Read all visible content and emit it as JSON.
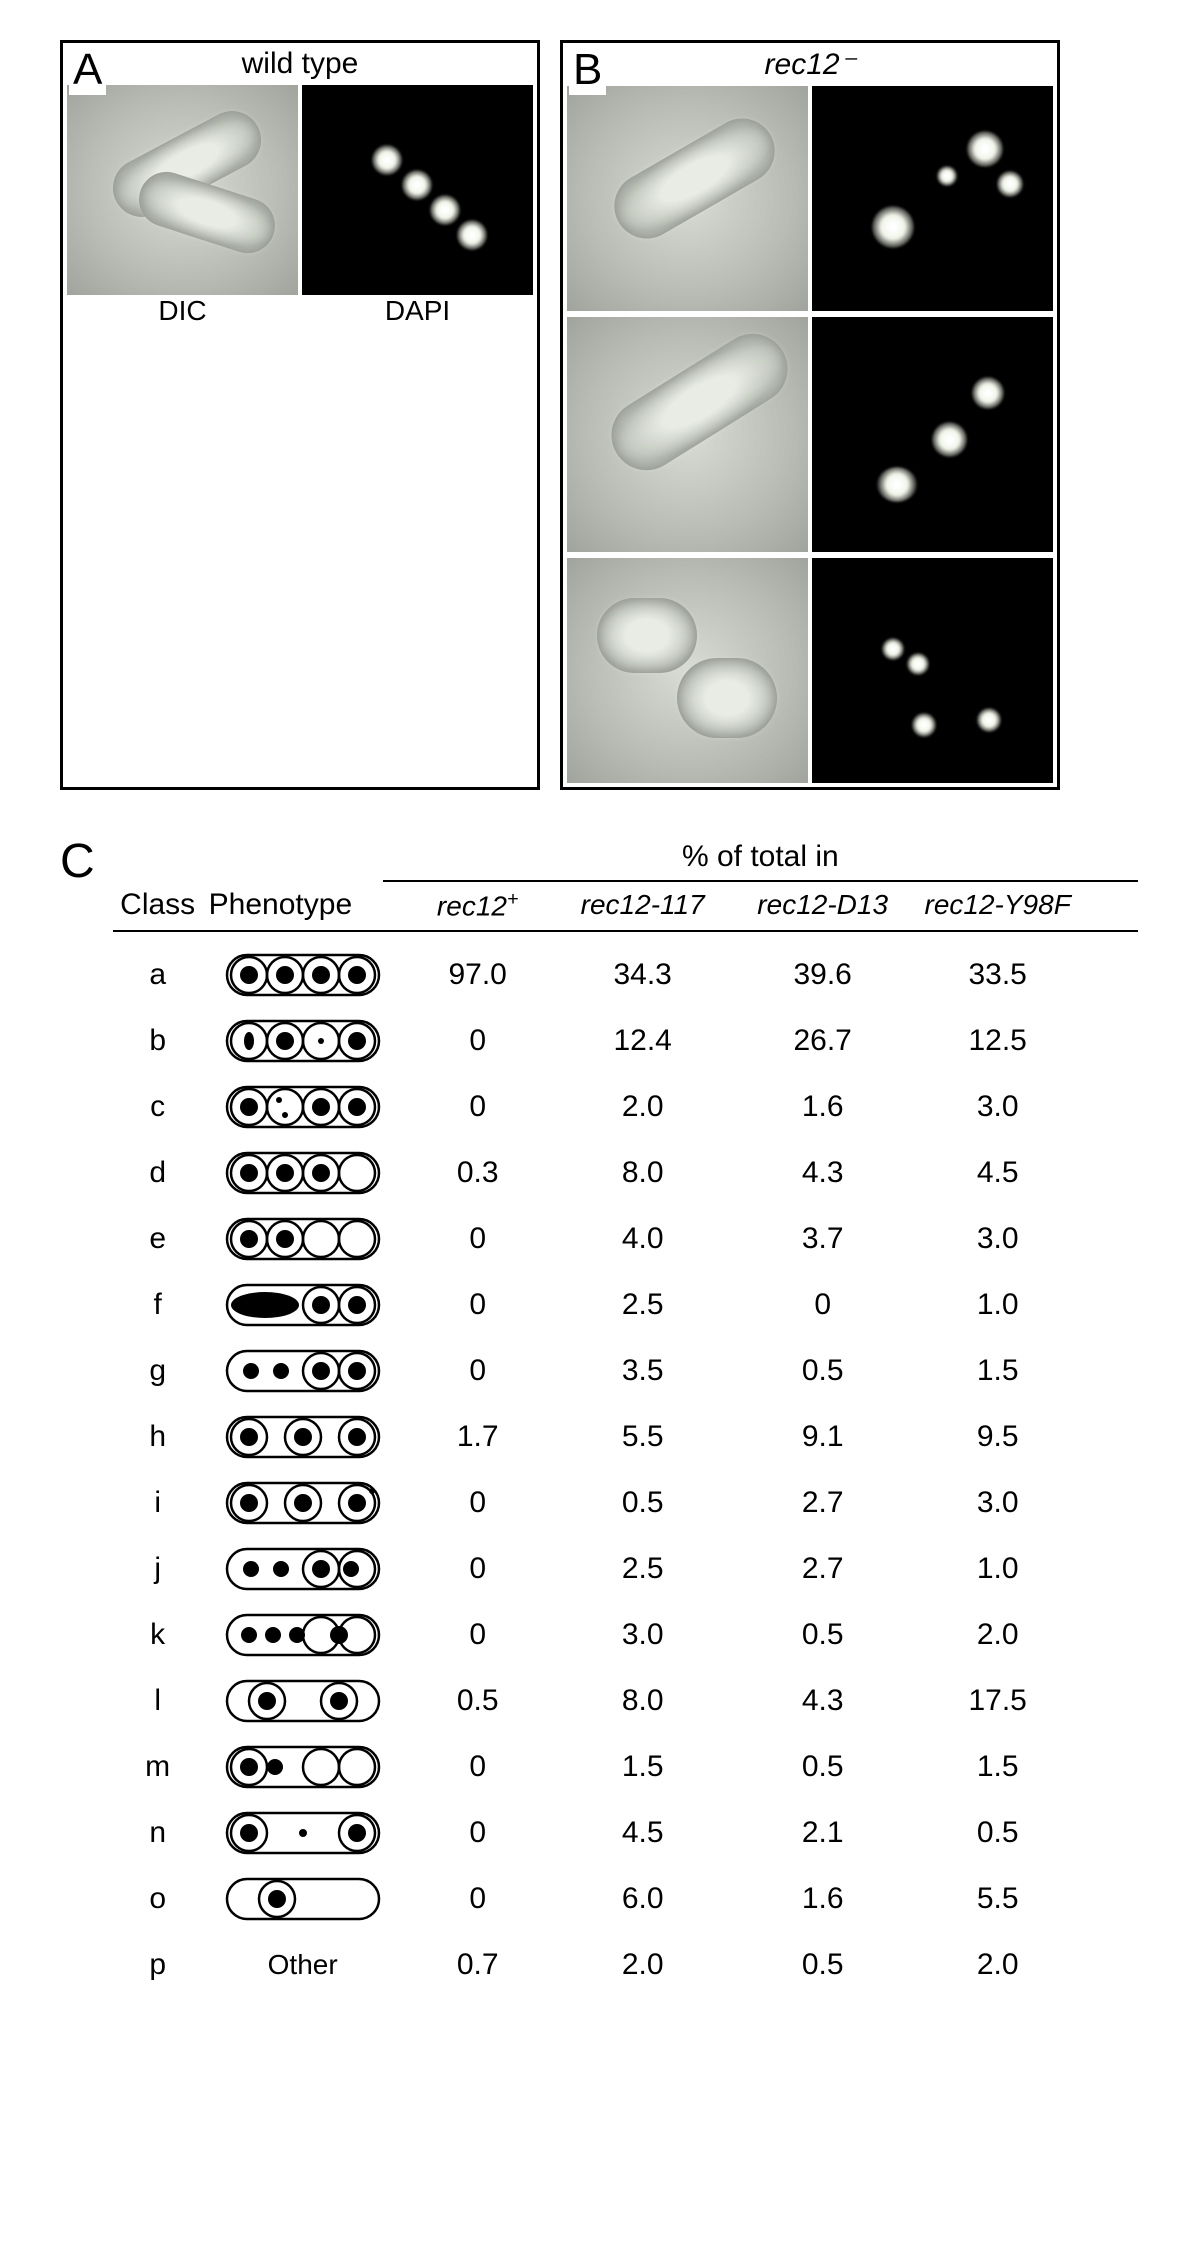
{
  "panels": {
    "A": {
      "label": "A",
      "title": "wild type",
      "sublabels": [
        "DIC",
        "DAPI"
      ]
    },
    "B": {
      "label": "B",
      "title": "rec12⁻"
    },
    "C": {
      "label": "C"
    }
  },
  "table": {
    "super_header": "% of total in",
    "headers": {
      "class": "Class",
      "phenotype": "Phenotype",
      "genotypes": [
        {
          "base": "rec12",
          "sup": "+"
        },
        {
          "base": "rec12-117",
          "sup": ""
        },
        {
          "base": "rec12-D13",
          "sup": ""
        },
        {
          "base": "rec12-Y98F",
          "sup": ""
        }
      ]
    },
    "rows": [
      {
        "class": "a",
        "vals": [
          "97.0",
          "34.3",
          "39.6",
          "33.5"
        ],
        "pheno": {
          "spores": [
            [
              28,
              24,
              18
            ],
            [
              64,
              24,
              18
            ],
            [
              100,
              24,
              18
            ],
            [
              136,
              24,
              18
            ]
          ],
          "nuclei": [
            [
              28,
              24,
              9
            ],
            [
              64,
              24,
              9
            ],
            [
              100,
              24,
              9
            ],
            [
              136,
              24,
              9
            ]
          ]
        }
      },
      {
        "class": "b",
        "vals": [
          "0",
          "12.4",
          "26.7",
          "12.5"
        ],
        "pheno": {
          "spores": [
            [
              28,
              24,
              18
            ],
            [
              64,
              24,
              18
            ],
            [
              100,
              24,
              18
            ],
            [
              136,
              24,
              18
            ]
          ],
          "nuclei": [
            [
              28,
              24,
              9,
              5,
              "ellipse"
            ],
            [
              64,
              24,
              9
            ],
            [
              100,
              24,
              3
            ],
            [
              136,
              24,
              9
            ]
          ]
        }
      },
      {
        "class": "c",
        "vals": [
          "0",
          "2.0",
          "1.6",
          "3.0"
        ],
        "pheno": {
          "spores": [
            [
              28,
              24,
              18
            ],
            [
              64,
              24,
              18
            ],
            [
              100,
              24,
              18
            ],
            [
              136,
              24,
              18
            ]
          ],
          "nuclei": [
            [
              28,
              24,
              9
            ],
            [
              58,
              17,
              3
            ],
            [
              64,
              32,
              3
            ],
            [
              100,
              24,
              9
            ],
            [
              136,
              24,
              9
            ]
          ]
        }
      },
      {
        "class": "d",
        "vals": [
          "0.3",
          "8.0",
          "4.3",
          "4.5"
        ],
        "pheno": {
          "spores": [
            [
              28,
              24,
              18
            ],
            [
              64,
              24,
              18
            ],
            [
              100,
              24,
              18
            ],
            [
              136,
              24,
              18
            ]
          ],
          "nuclei": [
            [
              28,
              24,
              9
            ],
            [
              64,
              24,
              9
            ],
            [
              100,
              24,
              9
            ]
          ]
        }
      },
      {
        "class": "e",
        "vals": [
          "0",
          "4.0",
          "3.7",
          "3.0"
        ],
        "pheno": {
          "spores": [
            [
              28,
              24,
              18
            ],
            [
              64,
              24,
              18
            ],
            [
              100,
              24,
              18
            ],
            [
              136,
              24,
              18
            ]
          ],
          "nuclei": [
            [
              28,
              24,
              9
            ],
            [
              64,
              24,
              9
            ]
          ]
        }
      },
      {
        "class": "f",
        "vals": [
          "0",
          "2.5",
          "0",
          "1.0"
        ],
        "pheno": {
          "spores": [
            [
              100,
              24,
              18
            ],
            [
              136,
              24,
              18
            ]
          ],
          "nuclei": [
            [
              100,
              24,
              9
            ],
            [
              136,
              24,
              9
            ]
          ],
          "bignuc": [
            44,
            24,
            34,
            13
          ]
        }
      },
      {
        "class": "g",
        "vals": [
          "0",
          "3.5",
          "0.5",
          "1.5"
        ],
        "pheno": {
          "spores": [
            [
              100,
              24,
              18
            ],
            [
              136,
              24,
              18
            ]
          ],
          "nuclei": [
            [
              30,
              24,
              8
            ],
            [
              60,
              24,
              8
            ],
            [
              100,
              24,
              9
            ],
            [
              136,
              24,
              9
            ]
          ],
          "free": true
        }
      },
      {
        "class": "h",
        "vals": [
          "1.7",
          "5.5",
          "9.1",
          "9.5"
        ],
        "pheno": {
          "spores": [
            [
              28,
              24,
              18
            ],
            [
              82,
              24,
              18
            ],
            [
              136,
              24,
              18
            ]
          ],
          "nuclei": [
            [
              28,
              24,
              9
            ],
            [
              82,
              24,
              9
            ],
            [
              136,
              24,
              9
            ]
          ]
        }
      },
      {
        "class": "i",
        "vals": [
          "0",
          "0.5",
          "2.7",
          "3.0"
        ],
        "pheno": {
          "spores": [
            [
              28,
              24,
              18
            ],
            [
              82,
              24,
              18
            ],
            [
              136,
              24,
              18
            ]
          ],
          "nuclei": [
            [
              28,
              24,
              9
            ],
            [
              82,
              24,
              9
            ],
            [
              136,
              24,
              9
            ],
            [
              151,
              12,
              3
            ]
          ]
        }
      },
      {
        "class": "j",
        "vals": [
          "0",
          "2.5",
          "2.7",
          "1.0"
        ],
        "pheno": {
          "spores": [
            [
              100,
              24,
              18
            ],
            [
              136,
              24,
              18
            ]
          ],
          "nuclei": [
            [
              30,
              24,
              8
            ],
            [
              60,
              24,
              8
            ],
            [
              100,
              24,
              9
            ],
            [
              130,
              24,
              8
            ]
          ],
          "free": true,
          "spore3nuc": false
        }
      },
      {
        "class": "k",
        "vals": [
          "0",
          "3.0",
          "0.5",
          "2.0"
        ],
        "pheno": {
          "spores": [
            [
              100,
              24,
              18
            ],
            [
              136,
              24,
              18
            ]
          ],
          "nuclei": [
            [
              28,
              24,
              8
            ],
            [
              52,
              24,
              8
            ],
            [
              76,
              24,
              8
            ],
            [
              118,
              24,
              9
            ]
          ],
          "free": true
        }
      },
      {
        "class": "l",
        "vals": [
          "0.5",
          "8.0",
          "4.3",
          "17.5"
        ],
        "pheno": {
          "spores": [
            [
              46,
              24,
              18
            ],
            [
              118,
              24,
              18
            ]
          ],
          "nuclei": [
            [
              46,
              24,
              9
            ],
            [
              118,
              24,
              9
            ]
          ]
        }
      },
      {
        "class": "m",
        "vals": [
          "0",
          "1.5",
          "0.5",
          "1.5"
        ],
        "pheno": {
          "spores": [
            [
              28,
              24,
              18
            ],
            [
              100,
              24,
              18
            ],
            [
              136,
              24,
              18
            ]
          ],
          "nuclei": [
            [
              28,
              24,
              9
            ],
            [
              54,
              24,
              8
            ]
          ],
          "free": true
        }
      },
      {
        "class": "n",
        "vals": [
          "0",
          "4.5",
          "2.1",
          "0.5"
        ],
        "pheno": {
          "spores": [
            [
              28,
              24,
              18
            ],
            [
              136,
              24,
              18
            ]
          ],
          "nuclei": [
            [
              28,
              24,
              9
            ],
            [
              82,
              24,
              4
            ],
            [
              136,
              24,
              9
            ]
          ]
        }
      },
      {
        "class": "o",
        "vals": [
          "0",
          "6.0",
          "1.6",
          "5.5"
        ],
        "pheno": {
          "spores": [
            [
              56,
              24,
              18
            ]
          ],
          "nuclei": [
            [
              56,
              24,
              9
            ]
          ]
        }
      },
      {
        "class": "p",
        "vals": [
          "0.7",
          "2.0",
          "0.5",
          "2.0"
        ],
        "pheno": "Other"
      }
    ]
  },
  "colors": {
    "background": "#ffffff",
    "text": "#000000",
    "border": "#000000",
    "dic_bg": "#b8bcb4",
    "dapi_bg": "#000000",
    "dapi_signal": "#f8fcee"
  },
  "typography": {
    "base_fontsize": 30,
    "panel_label_fontsize": 44
  }
}
